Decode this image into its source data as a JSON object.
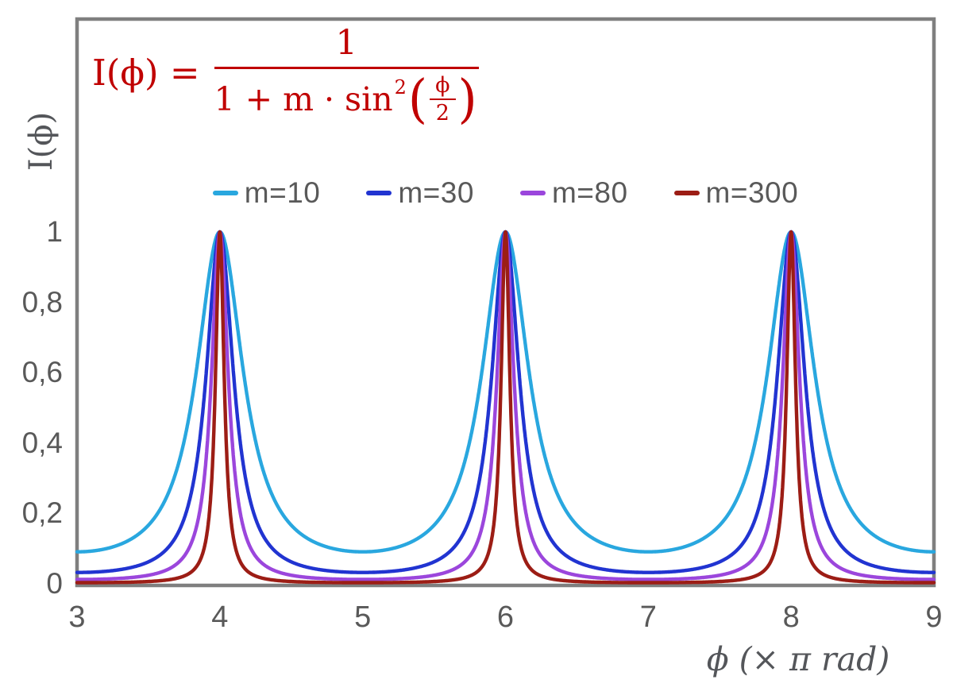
{
  "chart_data": {
    "type": "line",
    "function": "I(x) = 1 / (1 + m * sin^2(x * pi / 2)), x in units of pi rad",
    "xlabel": "ϕ  (× π rad)",
    "ylabel": "I(ϕ)",
    "xlim": [
      3,
      9
    ],
    "ylim": [
      0,
      1.605
    ],
    "x_tick_values": [
      3,
      4,
      5,
      6,
      7,
      8,
      9
    ],
    "x_tick_labels": [
      "3",
      "4",
      "5",
      "6",
      "7",
      "8",
      "9"
    ],
    "y_tick_values": [
      0,
      0.2,
      0.4,
      0.6,
      0.8,
      1
    ],
    "y_tick_labels": [
      "0",
      "0,2",
      "0,4",
      "0,6",
      "0,8",
      "1"
    ],
    "grid": false,
    "legend_position": "top-center",
    "series": [
      {
        "name": "m=10",
        "m": 10,
        "color": "#29A7DF",
        "peak_x": [
          4,
          6,
          8
        ],
        "peak_y": 1,
        "min_y": 0.091
      },
      {
        "name": "m=30",
        "m": 30,
        "color": "#2134D1",
        "peak_x": [
          4,
          6,
          8
        ],
        "peak_y": 1,
        "min_y": 0.032
      },
      {
        "name": "m=80",
        "m": 80,
        "color": "#9B46DC",
        "peak_x": [
          4,
          6,
          8
        ],
        "peak_y": 1,
        "min_y": 0.012
      },
      {
        "name": "m=300",
        "m": 300,
        "color": "#9C1D15",
        "peak_x": [
          4,
          6,
          8
        ],
        "peak_y": 1,
        "min_y": 0.003
      }
    ]
  },
  "formula": {
    "lhs": "I(ϕ) =",
    "numerator": "1",
    "den_text": "1 + m · sin",
    "den_exponent": "2",
    "paren_open": "(",
    "paren_close": ")",
    "inner_numerator": "ϕ",
    "inner_denominator": "2",
    "color": "#C00000"
  },
  "colors": {
    "background": "#FFFFFF",
    "plot_border": "#7F7F7F",
    "axis_line": "#7F7F7F",
    "axis_text": "#595959",
    "axis_title_text": "#54565A",
    "formula": "#C00000"
  }
}
